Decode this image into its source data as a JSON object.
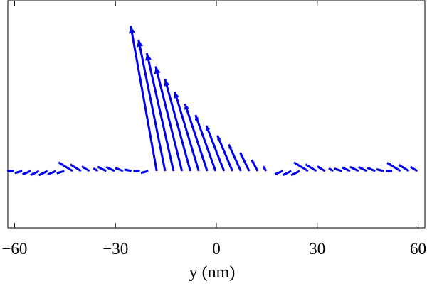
{
  "chart_data": {
    "type": "vector-field",
    "title": "",
    "xlabel": "y (nm)",
    "ylabel": "",
    "xlim": [
      -62,
      62
    ],
    "ylim": [
      -0.25,
      1.0
    ],
    "x_ticks": [
      -60,
      -30,
      0,
      30,
      60
    ],
    "x_tick_labels": [
      "−60",
      "−30",
      "0",
      "30",
      "60"
    ],
    "grid": false,
    "arrow_color": "#0000ee",
    "baseline_y": 0,
    "arrow_spacing": 2.5,
    "arrows_note": "Arrow field along the y axis: small tilted arrows away from the central region, large arrows pointing up-left between about y=-19 and y=15 nm, with small bumps near y=-45, y=25 and y=52 nm"
  }
}
